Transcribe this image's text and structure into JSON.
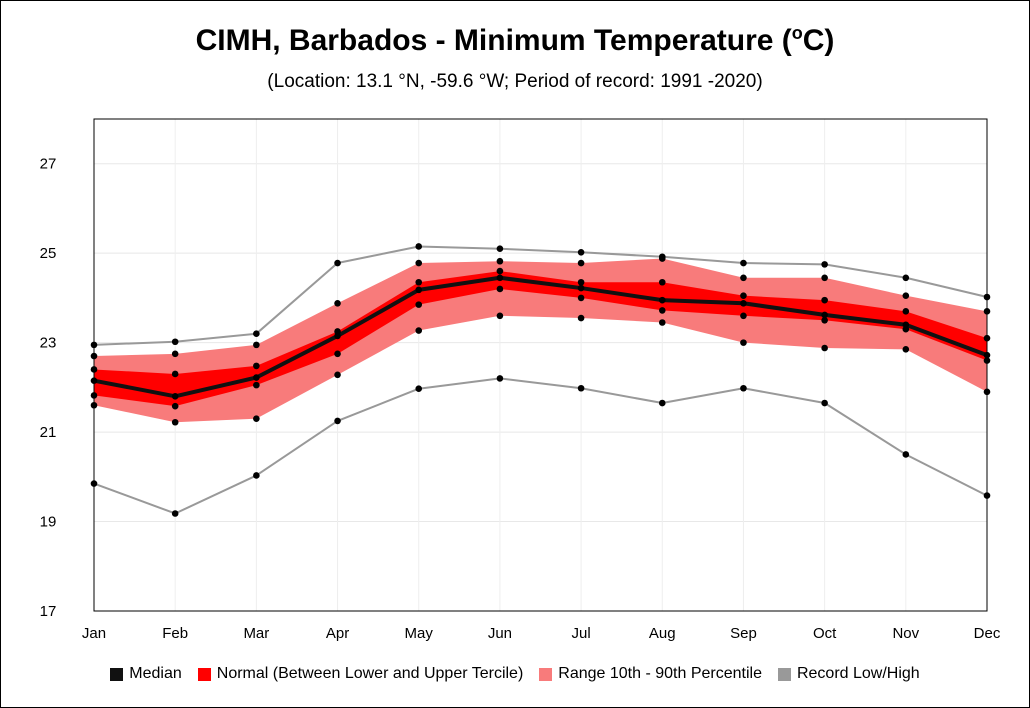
{
  "title_main": "CIMH, Barbados - Minimum Temperature (",
  "title_sup": "o",
  "title_end": "C)",
  "subtitle": "(Location: 13.1 °N, -59.6 °W; Period of record: 1991 -2020)",
  "chart_data": {
    "type": "line",
    "title": "CIMH, Barbados - Minimum Temperature (oC)",
    "subtitle": "(Location: 13.1 °N, -59.6 °W; Period of record: 1991 -2020)",
    "categories": [
      "Jan",
      "Feb",
      "Mar",
      "Apr",
      "May",
      "Jun",
      "Jul",
      "Aug",
      "Sep",
      "Oct",
      "Nov",
      "Dec"
    ],
    "ylim": [
      17,
      28
    ],
    "yticks": [
      17,
      19,
      21,
      23,
      25,
      27
    ],
    "grid": true,
    "legend_position": "bottom",
    "series": [
      {
        "name": "Record Low/High",
        "role": "record_high",
        "color": "#999999",
        "values": [
          22.95,
          23.02,
          23.2,
          24.78,
          25.15,
          25.1,
          25.02,
          24.92,
          24.78,
          24.75,
          24.45,
          24.02
        ]
      },
      {
        "name": "Range 10th - 90th Percentile",
        "role": "p90",
        "color": "#f87b7b",
        "values": [
          22.7,
          22.75,
          22.95,
          23.88,
          24.78,
          24.82,
          24.78,
          24.88,
          24.45,
          24.45,
          24.05,
          23.7
        ]
      },
      {
        "name": "Normal (Between Lower and Upper Tercile)",
        "role": "upper_tercile",
        "color": "#ff0000",
        "values": [
          22.4,
          22.3,
          22.48,
          23.25,
          24.35,
          24.6,
          24.35,
          24.35,
          24.05,
          23.95,
          23.7,
          23.1
        ]
      },
      {
        "name": "Median",
        "role": "median",
        "color": "#111111",
        "values": [
          22.15,
          21.8,
          22.22,
          23.15,
          24.18,
          24.45,
          24.22,
          23.95,
          23.88,
          23.62,
          23.4,
          22.72
        ]
      },
      {
        "name": "Normal (Between Lower and Upper Tercile)",
        "role": "lower_tercile",
        "color": "#ff0000",
        "values": [
          21.82,
          21.58,
          22.05,
          22.75,
          23.85,
          24.2,
          24.0,
          23.72,
          23.6,
          23.5,
          23.3,
          22.6
        ]
      },
      {
        "name": "Range 10th - 90th Percentile",
        "role": "p10",
        "color": "#f87b7b",
        "values": [
          21.6,
          21.22,
          21.3,
          22.28,
          23.27,
          23.6,
          23.55,
          23.45,
          23.0,
          22.88,
          22.85,
          21.9
        ]
      },
      {
        "name": "Record Low/High",
        "role": "record_low",
        "color": "#999999",
        "values": [
          19.85,
          19.18,
          20.03,
          21.25,
          21.97,
          22.2,
          21.98,
          21.65,
          21.98,
          21.65,
          20.5,
          19.58
        ]
      }
    ]
  },
  "legend": {
    "median": "Median",
    "normal": "Normal (Between Lower and Upper Tercile)",
    "range": "Range 10th - 90th Percentile",
    "record": "Record Low/High"
  },
  "colors": {
    "median": "#111111",
    "normal": "#ff0000",
    "range": "#f87b7b",
    "record": "#999999"
  }
}
